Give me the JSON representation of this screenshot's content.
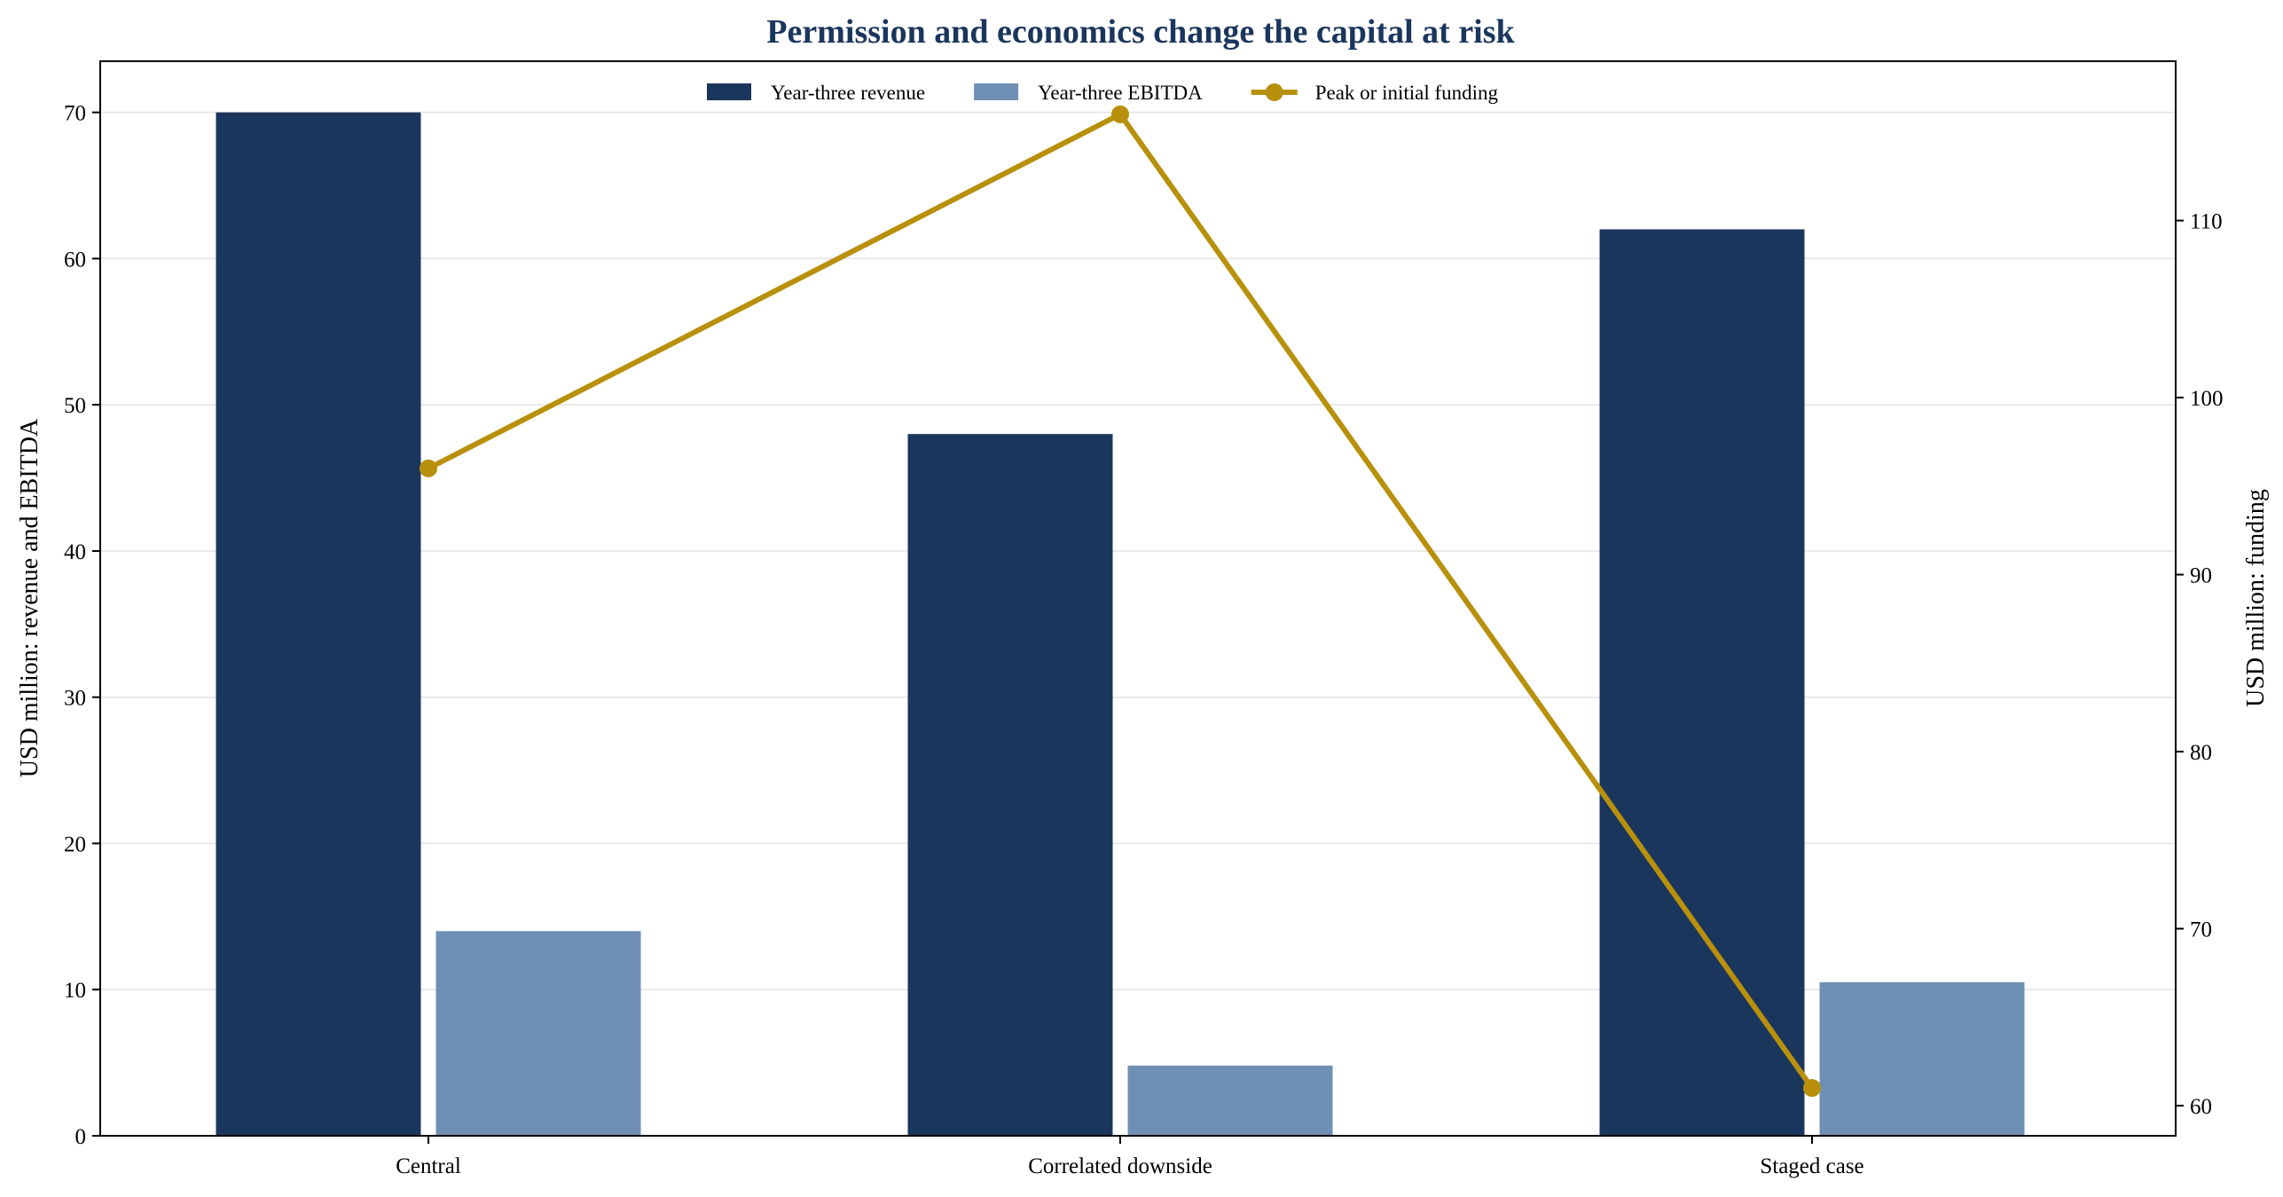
{
  "chart_data": {
    "type": "bar",
    "title": "Permission and economics change the capital at risk",
    "categories": [
      "Central",
      "Correlated downside",
      "Staged case"
    ],
    "series": [
      {
        "name": "Year-three revenue",
        "kind": "bar",
        "axis": "left",
        "color": "#1b365d",
        "values": [
          70,
          48,
          62
        ]
      },
      {
        "name": "Year-three EBITDA",
        "kind": "bar",
        "axis": "left",
        "color": "#6f8fb4",
        "values": [
          14,
          4.8,
          10.5
        ]
      },
      {
        "name": "Peak or initial funding",
        "kind": "line",
        "axis": "right",
        "color": "#b8900b",
        "values": [
          96,
          116,
          61
        ]
      }
    ],
    "ylabel_left": "USD million: revenue and EBITDA",
    "ylabel_right": "USD million: funding",
    "ylim_left": [
      0,
      73.5
    ],
    "ylim_right": [
      58.3,
      119
    ],
    "yticks_left": [
      0,
      10,
      20,
      30,
      40,
      50,
      60,
      70
    ],
    "yticks_right": [
      60,
      70,
      80,
      90,
      100,
      110
    ],
    "grid": true,
    "legend_position": "top-center"
  }
}
